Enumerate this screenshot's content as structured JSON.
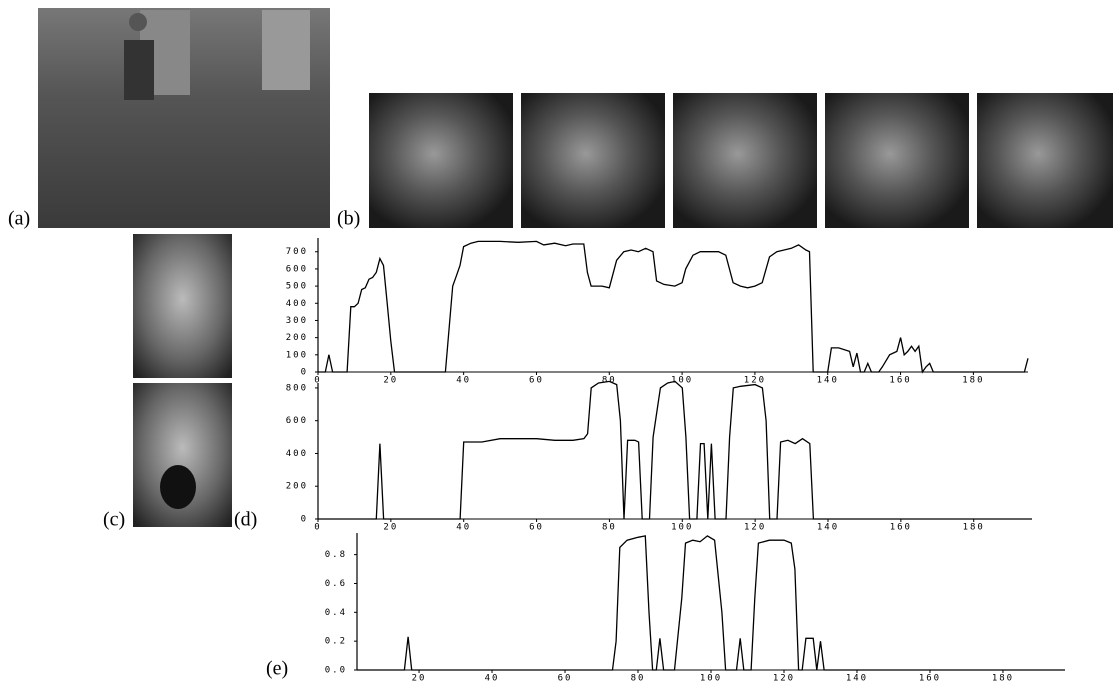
{
  "panel_labels": {
    "a": "(a)",
    "b": "(b)",
    "c": "(c)",
    "d": "(d)",
    "e": "(e)"
  },
  "chart_data": [
    {
      "type": "line",
      "color": "#000000",
      "x": [
        0,
        2,
        3,
        4,
        8,
        9,
        10,
        11,
        12,
        13,
        14,
        15,
        16,
        17,
        18,
        19,
        20,
        21,
        35,
        37,
        38,
        39,
        40,
        42,
        44,
        50,
        55,
        60,
        62,
        65,
        68,
        70,
        73,
        74,
        75,
        78,
        80,
        82,
        84,
        86,
        88,
        90,
        92,
        93,
        95,
        98,
        100,
        101,
        103,
        105,
        108,
        110,
        112,
        114,
        116,
        118,
        120,
        122,
        124,
        126,
        128,
        130,
        132,
        134,
        135,
        136,
        140,
        141,
        143,
        146,
        147,
        148,
        149,
        150,
        151,
        152,
        154,
        155,
        157,
        159,
        160,
        161,
        162,
        163,
        164,
        165,
        166,
        167,
        168,
        169,
        194,
        195
      ],
      "values": [
        0,
        0,
        100,
        0,
        0,
        380,
        380,
        400,
        480,
        490,
        540,
        550,
        580,
        660,
        620,
        400,
        180,
        0,
        0,
        500,
        560,
        620,
        730,
        750,
        760,
        760,
        755,
        760,
        740,
        750,
        735,
        745,
        745,
        580,
        500,
        500,
        490,
        650,
        700,
        710,
        700,
        720,
        700,
        530,
        510,
        500,
        520,
        600,
        680,
        700,
        700,
        700,
        680,
        520,
        500,
        490,
        500,
        520,
        670,
        700,
        710,
        720,
        740,
        710,
        700,
        0,
        0,
        140,
        140,
        120,
        30,
        110,
        0,
        0,
        50,
        0,
        0,
        30,
        100,
        120,
        200,
        100,
        120,
        150,
        120,
        150,
        0,
        30,
        50,
        0,
        0,
        80
      ],
      "xlim": [
        0,
        195
      ],
      "ylim": [
        0,
        780
      ],
      "xticks": [
        0,
        20,
        40,
        60,
        80,
        100,
        120,
        140,
        160,
        180
      ],
      "yticks": [
        0,
        100,
        200,
        300,
        400,
        500,
        600,
        700
      ]
    },
    {
      "type": "line",
      "color": "#000000",
      "x": [
        0,
        16,
        17,
        18,
        39,
        40,
        45,
        50,
        55,
        60,
        65,
        70,
        73,
        74,
        75,
        77,
        80,
        82,
        83,
        84,
        85,
        87,
        88,
        89,
        91,
        92,
        94,
        96,
        98,
        100,
        101,
        102,
        104,
        105,
        106,
        107,
        108,
        109,
        112,
        113,
        114,
        116,
        120,
        122,
        123,
        124,
        126,
        127,
        129,
        131,
        133,
        135,
        136,
        196
      ],
      "values": [
        0,
        0,
        460,
        0,
        0,
        470,
        470,
        490,
        490,
        490,
        480,
        480,
        490,
        520,
        800,
        830,
        840,
        820,
        600,
        0,
        480,
        480,
        470,
        0,
        0,
        500,
        800,
        830,
        840,
        800,
        500,
        0,
        0,
        460,
        460,
        0,
        460,
        0,
        0,
        500,
        800,
        810,
        820,
        800,
        600,
        0,
        0,
        470,
        480,
        460,
        490,
        460,
        0,
        0
      ],
      "xlim": [
        0,
        196
      ],
      "ylim": [
        0,
        830
      ],
      "xticks": [
        0,
        20,
        40,
        60,
        80,
        100,
        120,
        140,
        160,
        180
      ],
      "yticks": [
        0,
        200,
        400,
        600,
        800
      ]
    },
    {
      "type": "line",
      "color": "#000000",
      "x": [
        3,
        16,
        17,
        18,
        73,
        74,
        75,
        77,
        80,
        82,
        83,
        84,
        85,
        86,
        87,
        90,
        92,
        93,
        95,
        97,
        99,
        101,
        103,
        104,
        107,
        108,
        109,
        111,
        112,
        113,
        116,
        120,
        122,
        123,
        124,
        125,
        126,
        128,
        129,
        130,
        131,
        197
      ],
      "values": [
        0,
        0,
        0.23,
        0,
        0,
        0.2,
        0.85,
        0.9,
        0.92,
        0.93,
        0.4,
        0,
        0,
        0.22,
        0,
        0,
        0.5,
        0.88,
        0.9,
        0.89,
        0.93,
        0.9,
        0.4,
        0,
        0,
        0.22,
        0,
        0,
        0.5,
        0.88,
        0.9,
        0.9,
        0.88,
        0.7,
        0,
        0,
        0.22,
        0.22,
        0,
        0.2,
        0,
        0
      ],
      "xlim": [
        3,
        197
      ],
      "ylim": [
        0,
        0.95
      ],
      "xticks": [
        20,
        40,
        60,
        80,
        100,
        120,
        140,
        160,
        180
      ],
      "yticks": [
        {
          "value": 0,
          "label": "0.0"
        },
        0.2,
        0.4,
        0.6,
        0.8
      ]
    }
  ]
}
